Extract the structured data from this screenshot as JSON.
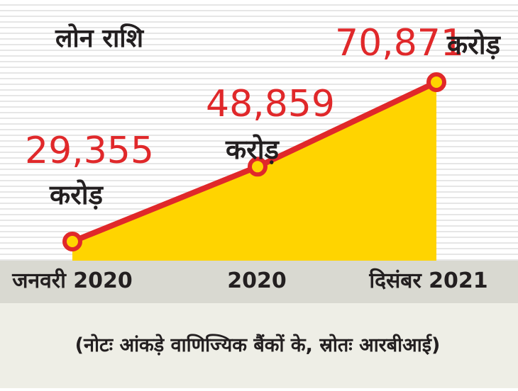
{
  "chart_data": {
    "type": "area",
    "title": "लोन राशि",
    "categories": [
      "जनवरी 2020",
      "2020",
      "दिसंबर 2021"
    ],
    "series": [
      {
        "values": [
          29355,
          48859,
          70871
        ]
      }
    ],
    "data_labels": [
      {
        "value": "29,355",
        "unit": "करोड़"
      },
      {
        "value": "48,859",
        "unit": "करोड़"
      },
      {
        "value": "70,871",
        "unit": "करोड़"
      }
    ],
    "note": "(नोटः आंकड़े वाणिज्यिक बैंकों के, स्रोतः आरबीआई)",
    "grid": true,
    "colors": {
      "line": "#e0282a",
      "fill": "#ffd400",
      "data_label": "#e0282a",
      "text": "#231f20",
      "axis_band": "#d9d9d1",
      "note_band": "#eeeee6",
      "stripe": "#e6e6e6"
    }
  }
}
